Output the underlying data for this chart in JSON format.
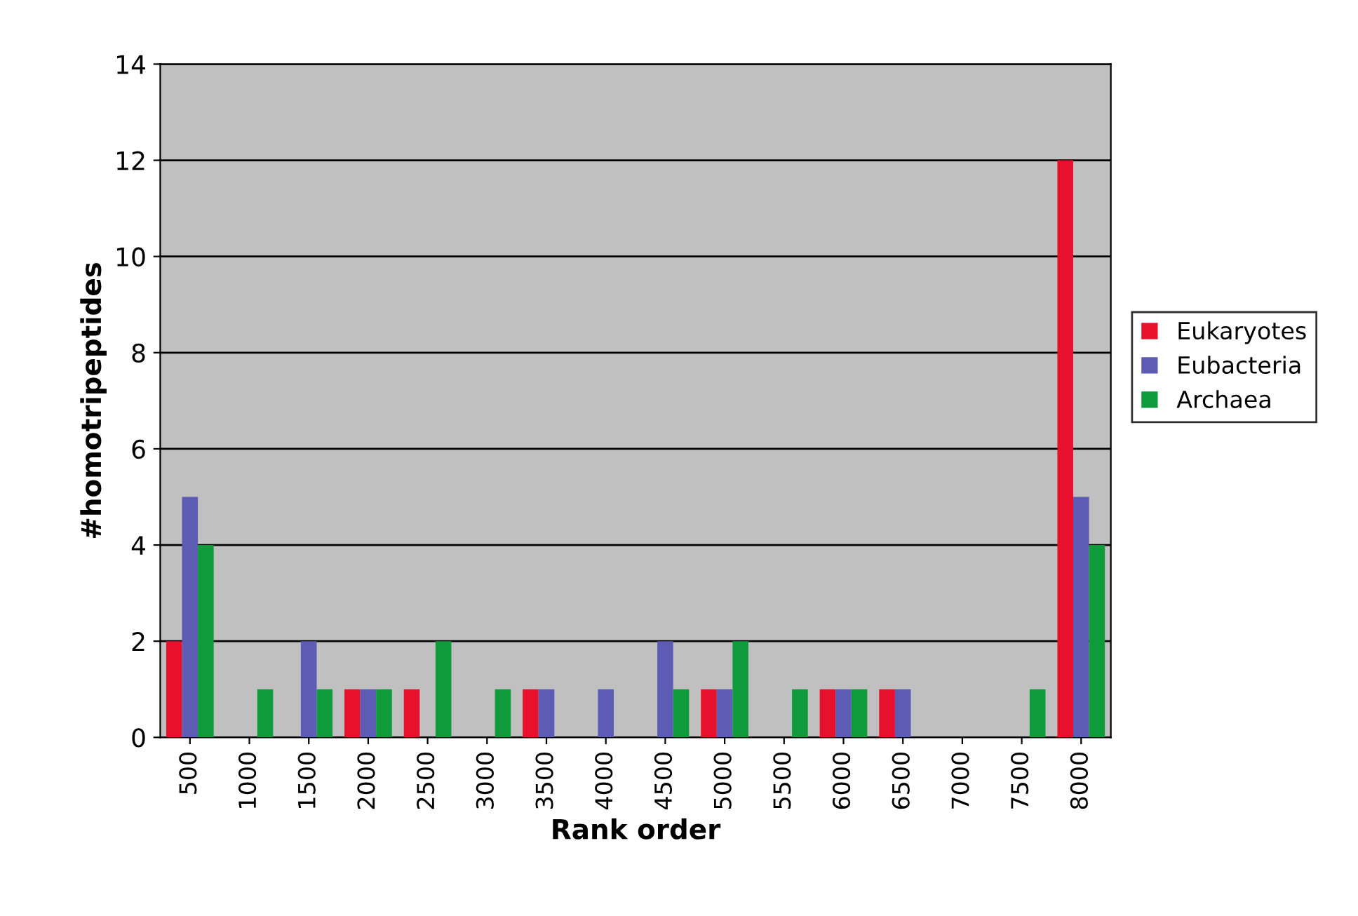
{
  "chart_data": {
    "type": "bar",
    "xlabel": "Rank order",
    "ylabel": "#homotripeptides",
    "categories": [
      "500",
      "1000",
      "1500",
      "2000",
      "2500",
      "3000",
      "3500",
      "4000",
      "4500",
      "5000",
      "5500",
      "6000",
      "6500",
      "7000",
      "7500",
      "8000"
    ],
    "series": [
      {
        "name": "Eukaryotes",
        "color": "#e8112d",
        "values": [
          2,
          0,
          0,
          1,
          1,
          0,
          1,
          0,
          0,
          1,
          0,
          1,
          1,
          0,
          0,
          12
        ]
      },
      {
        "name": "Eubacteria",
        "color": "#5c5cb4",
        "values": [
          5,
          0,
          2,
          1,
          0,
          0,
          1,
          1,
          2,
          1,
          0,
          1,
          1,
          0,
          0,
          5
        ]
      },
      {
        "name": "Archaea",
        "color": "#0f9a3c",
        "values": [
          4,
          1,
          1,
          1,
          2,
          1,
          0,
          0,
          1,
          2,
          1,
          1,
          0,
          0,
          1,
          4
        ]
      }
    ],
    "ylim": [
      0,
      14
    ],
    "yticks": [
      0,
      2,
      4,
      6,
      8,
      10,
      12,
      14
    ],
    "grid": "y",
    "legend": "right"
  }
}
